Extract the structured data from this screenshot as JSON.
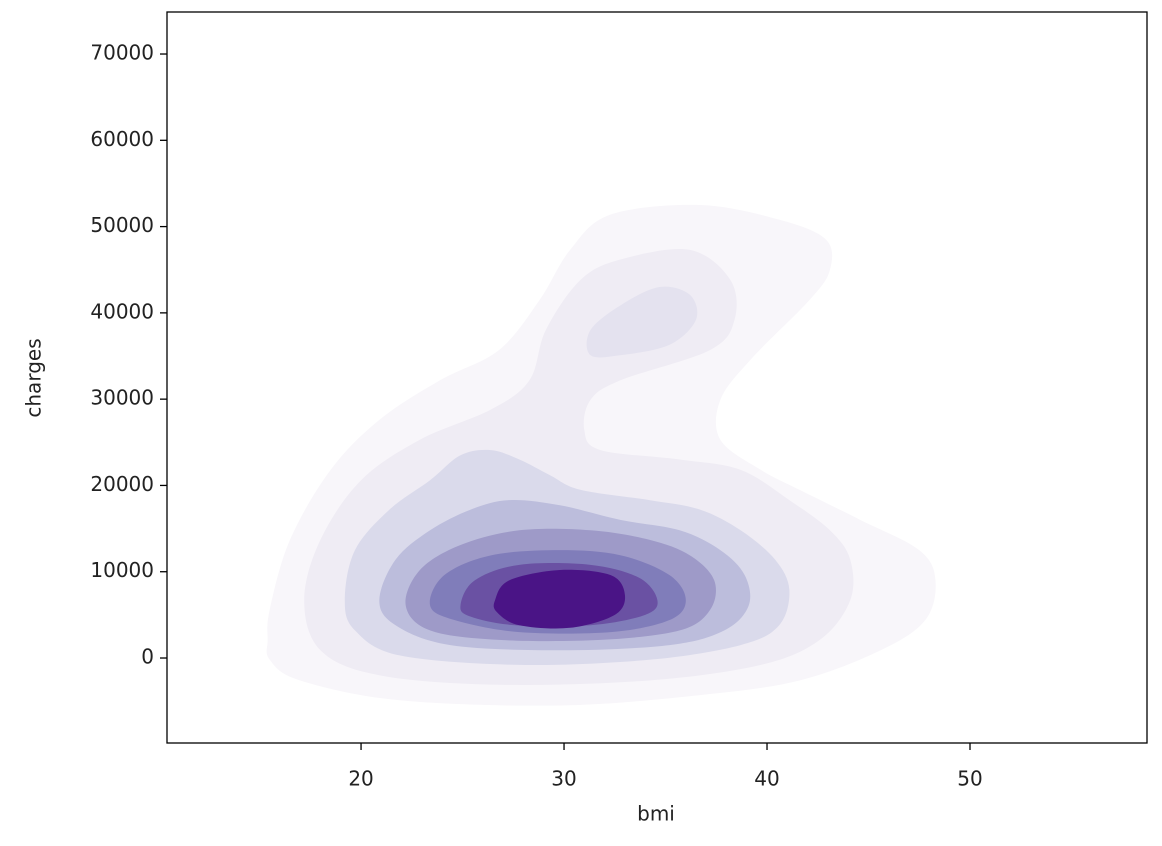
{
  "chart_data": {
    "type": "kde",
    "x_label": "bmi",
    "y_label": "charges",
    "xlim": [
      10.44,
      58.72
    ],
    "ylim": [
      -9850,
      74870
    ],
    "xticks": [
      20,
      30,
      40,
      50
    ],
    "yticks": [
      0,
      10000,
      20000,
      30000,
      40000,
      50000,
      60000,
      70000
    ],
    "contours": [
      {
        "color": "#f8f6fa",
        "x": [
          15.4,
          15.5,
          16.5,
          18.5,
          20.9,
          23.9,
          26.8,
          28.8,
          30.3,
          32.3,
          36.7,
          40.6,
          42.9,
          43.1,
          42.1,
          39.2,
          37.7,
          37.7,
          39.7,
          41.6,
          44.6,
          47.5,
          48.3,
          47.8,
          45.6,
          41.6,
          36.7,
          29.8,
          21.9,
          17.0,
          15.5
        ],
        "y": [
          2100,
          5600,
          13700,
          21800,
          27600,
          32200,
          35700,
          41500,
          47300,
          51400,
          52500,
          50800,
          48500,
          45000,
          41500,
          34600,
          29900,
          25300,
          21800,
          19500,
          16000,
          12500,
          9000,
          4400,
          900,
          -2600,
          -4300,
          -5500,
          -4900,
          -2600,
          -200
        ]
      },
      {
        "color": "#efecf4",
        "x": [
          17.2,
          18.0,
          20.0,
          22.9,
          26.4,
          28.3,
          29.1,
          30.8,
          32.8,
          36.2,
          38.2,
          38.4,
          37.2,
          32.8,
          31.3,
          31.0,
          31.8,
          35.7,
          38.7,
          41.1,
          43.1,
          44.1,
          44.1,
          42.6,
          39.7,
          34.2,
          26.8,
          20.9,
          18.0
        ],
        "y": [
          6700,
          13700,
          20600,
          25300,
          28800,
          32200,
          38000,
          43800,
          46200,
          47300,
          43800,
          39200,
          35700,
          32200,
          29900,
          26400,
          24100,
          23000,
          21800,
          18300,
          14800,
          11400,
          6700,
          2100,
          -800,
          -2600,
          -3100,
          -2000,
          900
        ]
      },
      {
        "color": "#e4e2ef",
        "x": [
          31.3,
          31.3,
          32.8,
          34.7,
          36.2,
          36.5,
          35.2,
          32.8
        ],
        "y": [
          35100,
          38000,
          40900,
          43000,
          42100,
          39200,
          36300,
          35100
        ]
      },
      {
        "color": "#dadaeb",
        "x": [
          19.2,
          19.7,
          21.4,
          23.4,
          24.9,
          26.4,
          27.8,
          29.3,
          30.8,
          34.2,
          36.7,
          38.7,
          40.4,
          41.1,
          40.6,
          38.7,
          34.2,
          27.8,
          21.9,
          19.7
        ],
        "y": [
          6700,
          12500,
          17200,
          20600,
          23500,
          24100,
          23000,
          21200,
          19500,
          18300,
          17200,
          14800,
          11400,
          7900,
          3800,
          1500,
          -200,
          -800,
          300,
          3200
        ]
      },
      {
        "color": "#bcbddc",
        "x": [
          20.9,
          21.7,
          23.4,
          25.4,
          27.3,
          29.8,
          32.8,
          35.7,
          37.7,
          38.9,
          39.1,
          37.9,
          35.2,
          29.8,
          24.4,
          21.7
        ],
        "y": [
          6700,
          11400,
          14800,
          17200,
          18300,
          17700,
          16000,
          14800,
          12500,
          9600,
          6100,
          3200,
          1500,
          900,
          1500,
          3800
        ]
      },
      {
        "color": "#9e9ac8",
        "x": [
          22.2,
          22.9,
          24.9,
          27.8,
          31.3,
          34.2,
          36.2,
          37.4,
          37.2,
          35.7,
          31.8,
          26.8,
          23.4
        ],
        "y": [
          6100,
          10200,
          13100,
          14800,
          14800,
          13700,
          11900,
          9000,
          5600,
          3200,
          2100,
          2100,
          3200
        ]
      },
      {
        "color": "#807dba",
        "x": [
          23.4,
          24.1,
          26.4,
          29.8,
          32.8,
          35.2,
          36.0,
          35.2,
          32.3,
          27.8,
          24.6
        ],
        "y": [
          6100,
          9600,
          11900,
          12500,
          11900,
          9600,
          6700,
          4400,
          3000,
          3000,
          4400
        ]
      },
      {
        "color": "#6a51a3",
        "x": [
          24.9,
          25.6,
          27.8,
          31.3,
          33.7,
          34.6,
          34.0,
          31.3,
          27.6,
          25.4
        ],
        "y": [
          6100,
          9000,
          10800,
          10800,
          9300,
          6700,
          5000,
          3800,
          3800,
          4800
        ]
      },
      {
        "color": "#4a1486",
        "x": [
          26.6,
          27.3,
          29.8,
          32.3,
          33.0,
          32.5,
          30.3,
          27.8,
          26.7
        ],
        "y": [
          6700,
          9000,
          10200,
          9600,
          7300,
          5000,
          3500,
          3800,
          5300
        ]
      }
    ]
  }
}
